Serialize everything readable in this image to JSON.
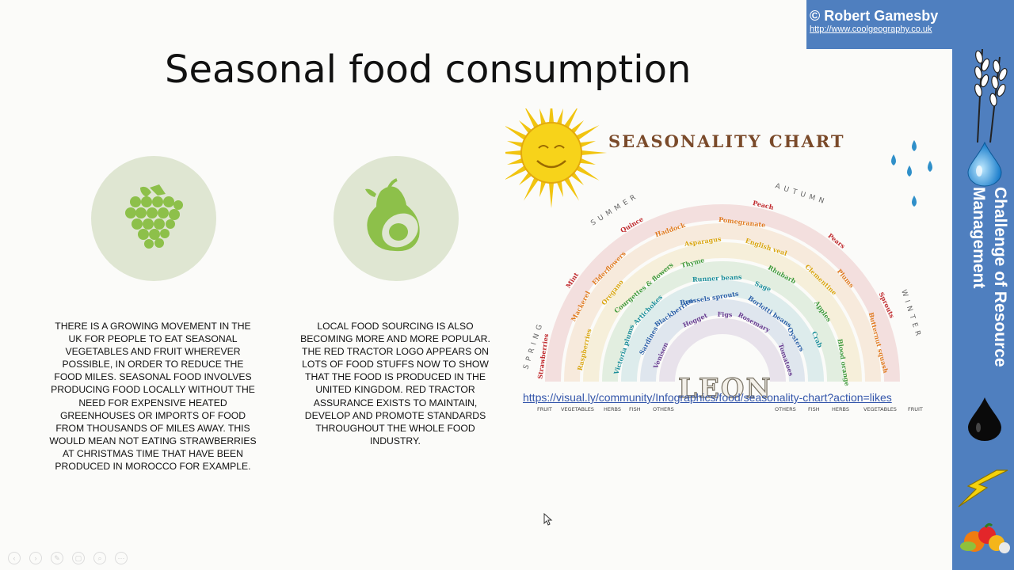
{
  "copyright": {
    "name": "© Robert Gamesby",
    "url": "http://www.coolgeography.co.uk"
  },
  "sidebar": {
    "label": "Challenge of Resource Management"
  },
  "slide": {
    "title": "Seasonal food consumption",
    "left_text": "THERE IS A GROWING MOVEMENT IN THE UK FOR PEOPLE TO EAT SEASONAL VEGETABLES AND FRUIT WHEREVER POSSIBLE, IN ORDER TO REDUCE THE FOOD MILES.  SEASONAL FOOD INVOLVES PRODUCING FOOD LOCALLY WITHOUT THE NEED FOR EXPENSIVE HEATED GREENHOUSES OR IMPORTS OF FOOD FROM THOUSANDS OF MILES AWAY. THIS WOULD MEAN NOT EATING STRAWBERRIES AT CHRISTMAS TIME THAT HAVE BEEN PRODUCED IN MOROCCO FOR EXAMPLE.",
    "right_text": "LOCAL FOOD SOURCING IS ALSO BECOMING MORE AND MORE POPULAR.  THE RED TRACTOR LOGO APPEARS ON LOTS OF FOOD STUFFS NOW TO SHOW THAT THE FOOD IS PRODUCED IN THE UNITED KINGDOM.  RED TRACTOR ASSURANCE EXISTS TO MAINTAIN, DEVELOP AND PROMOTE STANDARDS THROUGHOUT THE WHOLE FOOD INDUSTRY.",
    "chart_link": "https://visual.ly/community/Infographics/food/seasonality-chart?action=likes"
  },
  "infographic": {
    "heading": "SEASONALITY CHART",
    "seasons": [
      "SPRING",
      "SUMMER",
      "AUTUMN",
      "WINTER"
    ],
    "brand": "LEON",
    "left_categories": [
      "FRUIT",
      "VEGETABLES",
      "HERBS",
      "FISH",
      "OTHERS"
    ],
    "right_categories": [
      "OTHERS",
      "FISH",
      "HERBS",
      "VEGETABLES",
      "FRUIT"
    ],
    "foods": [
      "Strawberries",
      "Elderflowers",
      "Asparagus",
      "Rhubarb",
      "Crab",
      "Sardines",
      "Hogget",
      "Peach",
      "Plums",
      "Raspberries",
      "Courgettes & flowers",
      "Runner beans",
      "Borlotti beans",
      "Tomatoes",
      "Mint",
      "Haddock",
      "English veal",
      "Apples",
      "Victoria plums",
      "Blackberries",
      "Figs",
      "Pears",
      "Butternut squash",
      "Oregano",
      "Thyme",
      "Sage",
      "Oysters",
      "Venison",
      "Quince",
      "Pomegranate",
      "Clementine",
      "Blood orange",
      "Artichokes",
      "Brussels sprouts",
      "Rosemary",
      "Sprouts",
      "Mackerel"
    ],
    "colors": {
      "red": "#c0282c",
      "orange": "#e07a1f",
      "yellow": "#d9a50e",
      "green": "#3f9a3b",
      "teal": "#1b8e9a",
      "blue": "#2a5fa8",
      "purple": "#6b3f92"
    }
  },
  "toolbar": {
    "icons": [
      "prev-icon",
      "next-icon",
      "pen-icon",
      "slides-icon",
      "zoom-icon",
      "more-icon"
    ],
    "glyphs": [
      "‹",
      "›",
      "✎",
      "▢",
      "⌕",
      "⋯"
    ]
  }
}
